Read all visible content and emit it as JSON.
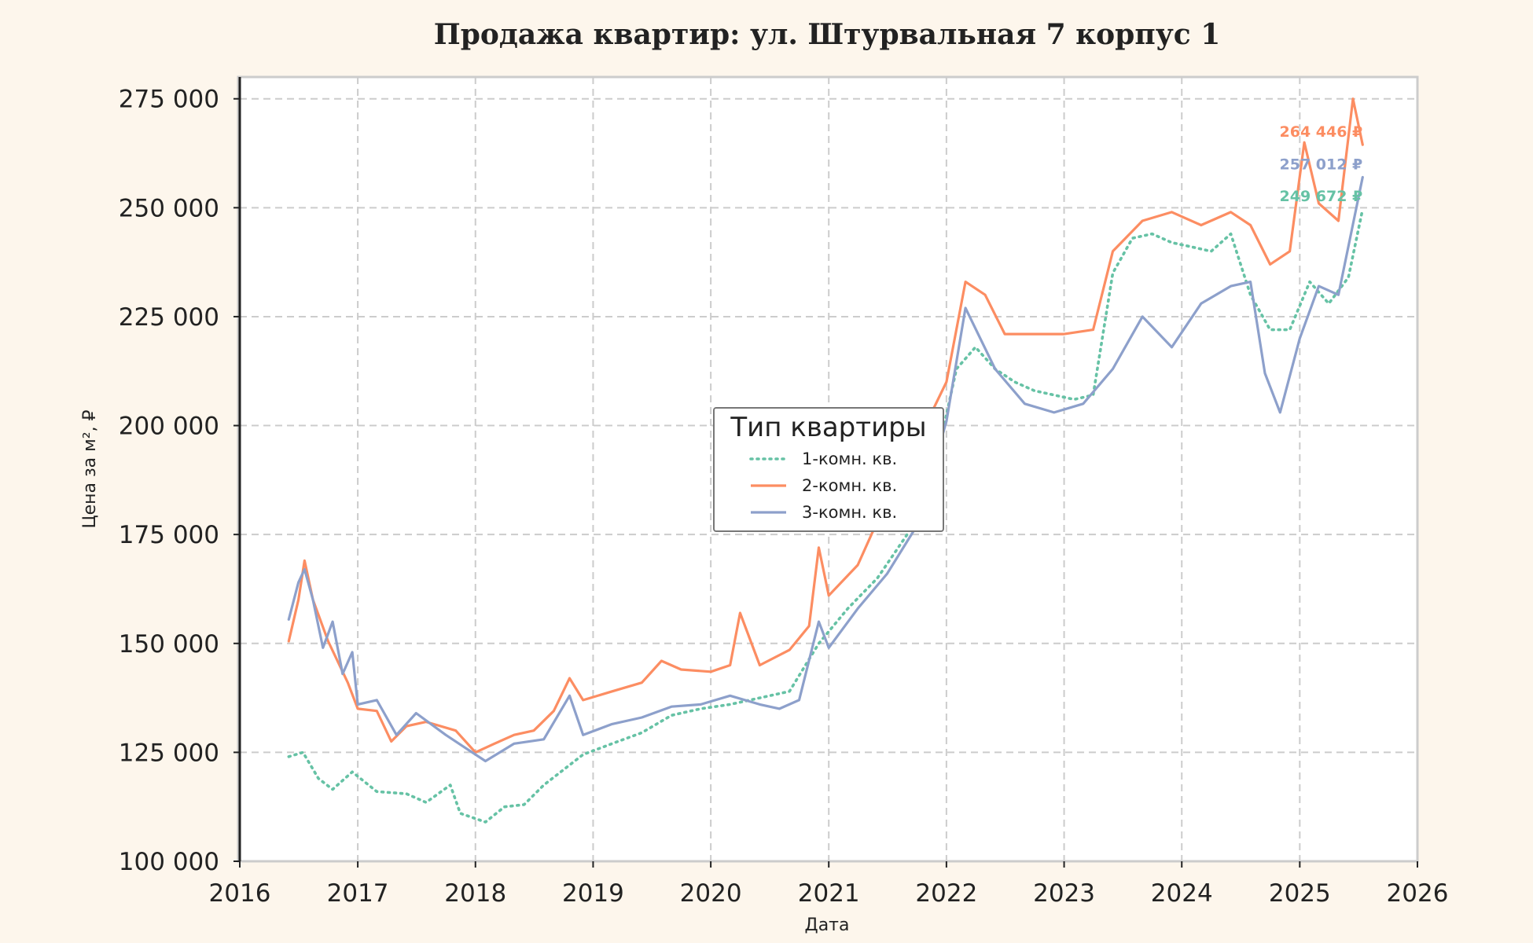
{
  "chart_data": {
    "type": "line",
    "title": "Продажа квартир: ул. Штурвальная 7 корпус 1",
    "xlabel": "Дата",
    "ylabel": "Цена за м², ₽",
    "xlim": [
      "2016-01-01",
      "2026-01-01"
    ],
    "ylim": [
      100000,
      280000
    ],
    "x_ticks": [
      "2016",
      "2017",
      "2018",
      "2019",
      "2020",
      "2021",
      "2022",
      "2023",
      "2024",
      "2025",
      "2026"
    ],
    "y_ticks": [
      "100 000",
      "125 000",
      "150 000",
      "175 000",
      "200 000",
      "225 000",
      "250 000",
      "275 000"
    ],
    "grid": true,
    "legend": {
      "title": "Тип квартиры",
      "placement": "center"
    },
    "series": [
      {
        "name": "1-комн. кв.",
        "color": "#66c2a5",
        "style": "dotted",
        "end_label": "249 672 ₽",
        "points": [
          [
            "2016-06-01",
            124000
          ],
          [
            "2016-07-15",
            125000
          ],
          [
            "2016-09-01",
            119000
          ],
          [
            "2016-10-15",
            116500
          ],
          [
            "2016-12-15",
            120500
          ],
          [
            "2017-03-01",
            116000
          ],
          [
            "2017-06-01",
            115500
          ],
          [
            "2017-08-01",
            113500
          ],
          [
            "2017-10-15",
            117500
          ],
          [
            "2017-11-15",
            111000
          ],
          [
            "2018-02-01",
            109000
          ],
          [
            "2018-04-01",
            112500
          ],
          [
            "2018-06-01",
            113000
          ],
          [
            "2018-08-01",
            117500
          ],
          [
            "2018-10-01",
            121000
          ],
          [
            "2018-12-01",
            124500
          ],
          [
            "2019-03-01",
            127000
          ],
          [
            "2019-06-01",
            129500
          ],
          [
            "2019-09-01",
            133500
          ],
          [
            "2019-12-01",
            135000
          ],
          [
            "2020-03-01",
            136000
          ],
          [
            "2020-06-01",
            137500
          ],
          [
            "2020-09-01",
            139000
          ],
          [
            "2020-12-01",
            150000
          ],
          [
            "2021-03-01",
            158000
          ],
          [
            "2021-06-01",
            165000
          ],
          [
            "2021-09-01",
            175000
          ],
          [
            "2021-12-01",
            192000
          ],
          [
            "2022-02-01",
            213000
          ],
          [
            "2022-04-01",
            218000
          ],
          [
            "2022-06-01",
            213000
          ],
          [
            "2022-08-01",
            210000
          ],
          [
            "2022-10-01",
            208000
          ],
          [
            "2022-12-01",
            207000
          ],
          [
            "2023-02-01",
            206000
          ],
          [
            "2023-04-01",
            207000
          ],
          [
            "2023-06-01",
            235000
          ],
          [
            "2023-08-01",
            243000
          ],
          [
            "2023-10-01",
            244000
          ],
          [
            "2023-12-01",
            242000
          ],
          [
            "2024-02-01",
            241000
          ],
          [
            "2024-04-01",
            240000
          ],
          [
            "2024-06-01",
            244000
          ],
          [
            "2024-08-01",
            230000
          ],
          [
            "2024-10-01",
            222000
          ],
          [
            "2024-12-01",
            222000
          ],
          [
            "2025-02-01",
            233000
          ],
          [
            "2025-04-01",
            228000
          ],
          [
            "2025-06-01",
            234000
          ],
          [
            "2025-07-15",
            249672
          ]
        ]
      },
      {
        "name": "2-комн. кв.",
        "color": "#fc8d62",
        "style": "solid",
        "end_label": "264 446 ₽",
        "points": [
          [
            "2016-06-01",
            150500
          ],
          [
            "2016-07-01",
            160000
          ],
          [
            "2016-07-20",
            169000
          ],
          [
            "2016-08-15",
            160000
          ],
          [
            "2016-10-01",
            150500
          ],
          [
            "2016-12-01",
            141000
          ],
          [
            "2017-01-01",
            135000
          ],
          [
            "2017-03-01",
            134500
          ],
          [
            "2017-04-15",
            127500
          ],
          [
            "2017-06-01",
            131000
          ],
          [
            "2017-08-01",
            132000
          ],
          [
            "2017-11-01",
            130000
          ],
          [
            "2018-01-01",
            125000
          ],
          [
            "2018-03-01",
            127000
          ],
          [
            "2018-05-01",
            129000
          ],
          [
            "2018-07-01",
            130000
          ],
          [
            "2018-09-01",
            134500
          ],
          [
            "2018-10-20",
            142000
          ],
          [
            "2018-12-01",
            137000
          ],
          [
            "2019-03-01",
            139000
          ],
          [
            "2019-06-01",
            141000
          ],
          [
            "2019-08-01",
            146000
          ],
          [
            "2019-10-01",
            144000
          ],
          [
            "2020-01-01",
            143500
          ],
          [
            "2020-03-01",
            145000
          ],
          [
            "2020-04-01",
            157000
          ],
          [
            "2020-06-01",
            145000
          ],
          [
            "2020-09-01",
            148500
          ],
          [
            "2020-11-01",
            154000
          ],
          [
            "2020-12-01",
            172000
          ],
          [
            "2021-01-01",
            161000
          ],
          [
            "2021-04-01",
            168000
          ],
          [
            "2021-07-01",
            183000
          ],
          [
            "2021-10-01",
            196000
          ],
          [
            "2022-01-01",
            210000
          ],
          [
            "2022-03-01",
            233000
          ],
          [
            "2022-05-01",
            230000
          ],
          [
            "2022-07-01",
            221000
          ],
          [
            "2022-10-01",
            221000
          ],
          [
            "2023-01-01",
            221000
          ],
          [
            "2023-04-01",
            222000
          ],
          [
            "2023-06-01",
            240000
          ],
          [
            "2023-09-01",
            247000
          ],
          [
            "2023-12-01",
            249000
          ],
          [
            "2024-03-01",
            246000
          ],
          [
            "2024-06-01",
            249000
          ],
          [
            "2024-08-01",
            246000
          ],
          [
            "2024-10-01",
            237000
          ],
          [
            "2024-12-01",
            240000
          ],
          [
            "2025-01-15",
            265000
          ],
          [
            "2025-03-01",
            251000
          ],
          [
            "2025-05-01",
            247000
          ],
          [
            "2025-06-15",
            275000
          ],
          [
            "2025-07-15",
            264446
          ]
        ]
      },
      {
        "name": "3-комн. кв.",
        "color": "#8da0cb",
        "style": "solid",
        "end_label": "257 012 ₽",
        "points": [
          [
            "2016-06-01",
            155500
          ],
          [
            "2016-07-01",
            164000
          ],
          [
            "2016-07-20",
            167000
          ],
          [
            "2016-08-15",
            160000
          ],
          [
            "2016-09-15",
            149000
          ],
          [
            "2016-10-15",
            155000
          ],
          [
            "2016-11-15",
            143000
          ],
          [
            "2016-12-15",
            148000
          ],
          [
            "2017-01-01",
            136000
          ],
          [
            "2017-03-01",
            137000
          ],
          [
            "2017-05-01",
            129000
          ],
          [
            "2017-07-01",
            134000
          ],
          [
            "2017-10-01",
            129000
          ],
          [
            "2017-12-01",
            126000
          ],
          [
            "2018-02-01",
            123000
          ],
          [
            "2018-05-01",
            127000
          ],
          [
            "2018-08-01",
            128000
          ],
          [
            "2018-10-20",
            138000
          ],
          [
            "2018-12-01",
            129000
          ],
          [
            "2019-03-01",
            131500
          ],
          [
            "2019-06-01",
            133000
          ],
          [
            "2019-09-01",
            135500
          ],
          [
            "2019-12-01",
            136000
          ],
          [
            "2020-03-01",
            138000
          ],
          [
            "2020-06-01",
            136000
          ],
          [
            "2020-08-01",
            135000
          ],
          [
            "2020-10-01",
            137000
          ],
          [
            "2020-12-01",
            155000
          ],
          [
            "2021-01-01",
            149000
          ],
          [
            "2021-04-01",
            158000
          ],
          [
            "2021-07-01",
            166000
          ],
          [
            "2021-10-01",
            177000
          ],
          [
            "2022-01-01",
            201000
          ],
          [
            "2022-03-01",
            227000
          ],
          [
            "2022-06-01",
            213000
          ],
          [
            "2022-09-01",
            205000
          ],
          [
            "2022-12-01",
            203000
          ],
          [
            "2023-03-01",
            205000
          ],
          [
            "2023-06-01",
            213000
          ],
          [
            "2023-09-01",
            225000
          ],
          [
            "2023-12-01",
            218000
          ],
          [
            "2024-03-01",
            228000
          ],
          [
            "2024-06-01",
            232000
          ],
          [
            "2024-08-01",
            233000
          ],
          [
            "2024-09-15",
            212000
          ],
          [
            "2024-11-01",
            203000
          ],
          [
            "2025-01-01",
            220000
          ],
          [
            "2025-03-01",
            232000
          ],
          [
            "2025-05-01",
            230000
          ],
          [
            "2025-07-15",
            257012
          ]
        ]
      }
    ]
  }
}
